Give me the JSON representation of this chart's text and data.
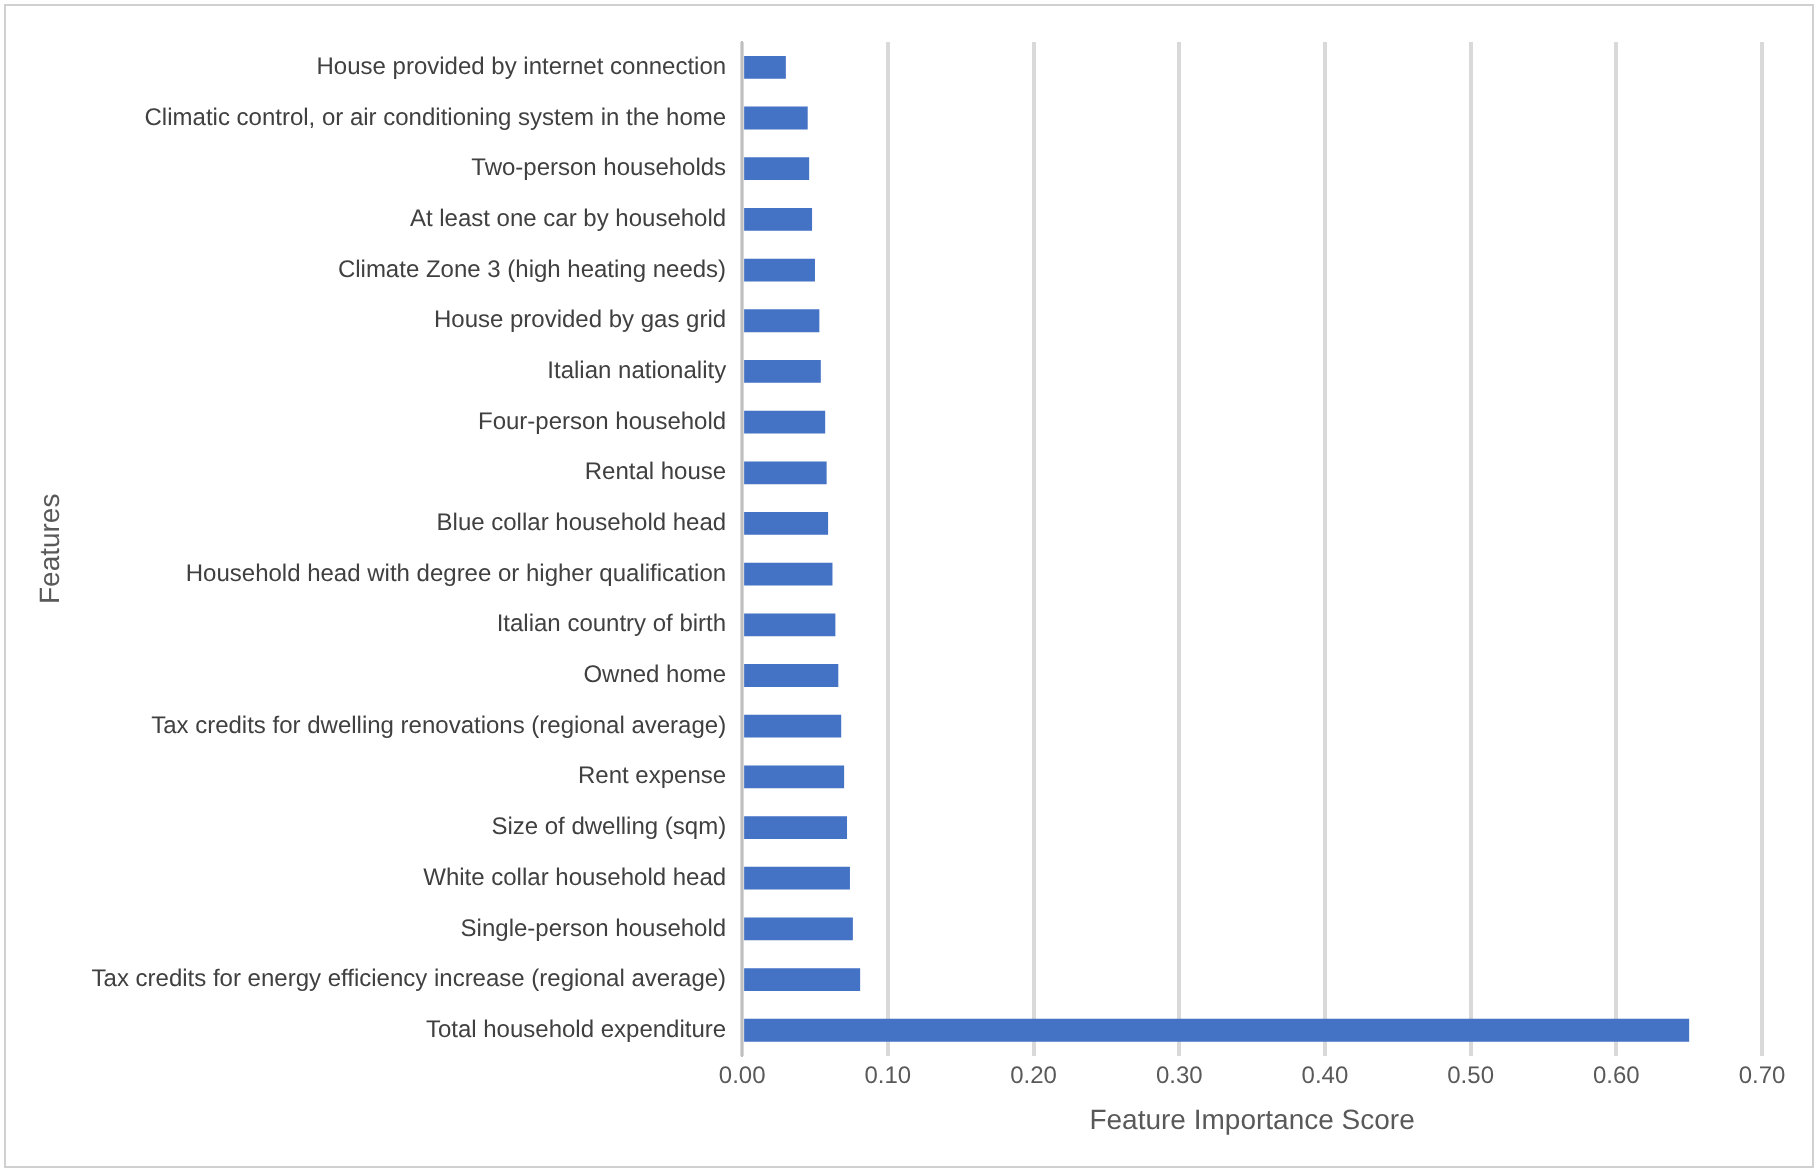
{
  "chart_data": {
    "type": "bar",
    "orientation": "horizontal",
    "xlabel": "Feature Importance Score",
    "ylabel": "Features",
    "categories": [
      "House provided by internet connection",
      "Climatic control, or air conditioning system in the home",
      "Two-person households",
      "At least one car by household",
      "Climate Zone 3 (high heating needs)",
      "House provided by gas grid",
      "Italian nationality",
      "Four-person household",
      "Rental house",
      "Blue collar household head",
      "Household head with degree or higher qualification",
      "Italian country of birth",
      "Owned home",
      "Tax credits for dwelling renovations (regional average)",
      "Rent expense",
      "Size of dwelling (sqm)",
      "White collar household head",
      "Single-person household",
      "Tax credits for energy efficiency increase (regional average)",
      "Total household expenditure"
    ],
    "values": [
      0.03,
      0.045,
      0.046,
      0.048,
      0.05,
      0.053,
      0.054,
      0.057,
      0.058,
      0.059,
      0.062,
      0.064,
      0.066,
      0.068,
      0.07,
      0.072,
      0.074,
      0.076,
      0.081,
      0.65
    ],
    "color": "#4472c4",
    "xlim": [
      0,
      0.7
    ],
    "xticks": [
      {
        "value": 0,
        "label": "0.00"
      },
      {
        "value": 0.1,
        "label": "0.10"
      },
      {
        "value": 0.2,
        "label": "0.20"
      },
      {
        "value": 0.3,
        "label": "0.30"
      },
      {
        "value": 0.4,
        "label": "0.40"
      },
      {
        "value": 0.5,
        "label": "0.50"
      },
      {
        "value": 0.6,
        "label": "0.60"
      },
      {
        "value": 0.7,
        "label": "0.70"
      }
    ],
    "grid": "x",
    "legend": false
  }
}
